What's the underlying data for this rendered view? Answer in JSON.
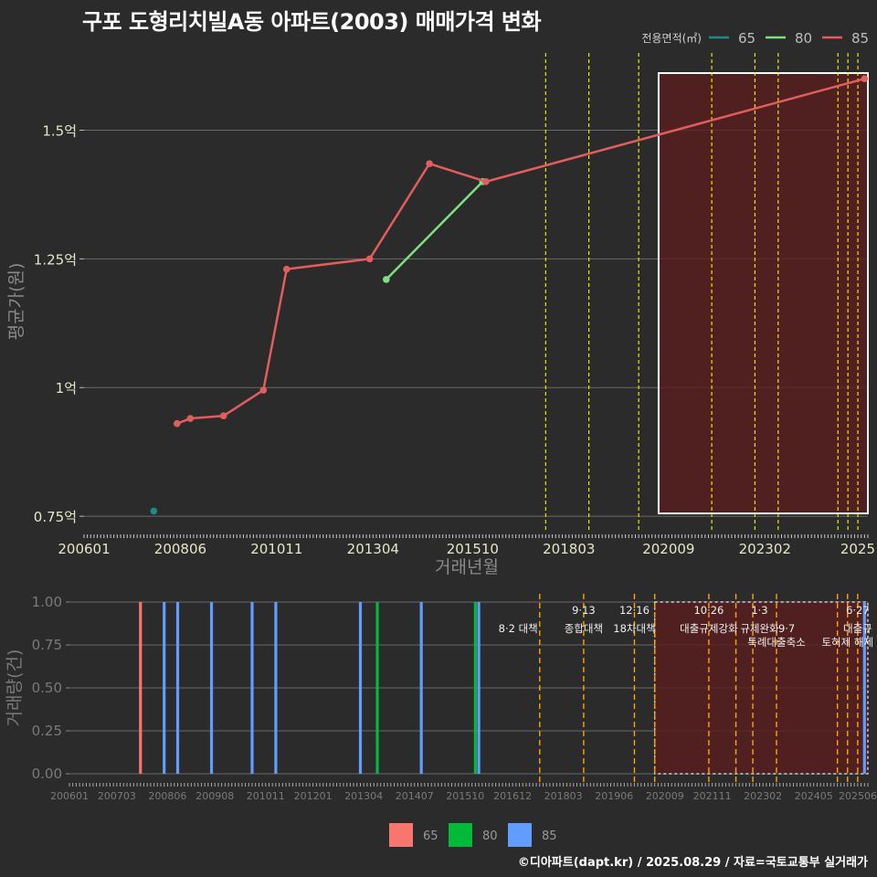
{
  "title": "구포 도형리치빌A동 아파트(2003) 매매가격 변화",
  "footer": "©디아파트(dapt.kr) / 2025.08.29 / 자료=국토교통부 실거래가",
  "colors": {
    "background": "#2b2b2c",
    "s65_line": "#1f8a8a",
    "s80_line": "#7ee07e",
    "s85_line": "#e35d5d",
    "s65_bar": "#f8766d",
    "s80_bar": "#00ba38",
    "s85_bar": "#619cff",
    "policy_top": "#e8e800",
    "policy_bottom": "#ffa500",
    "highlight": "#5a1e1e"
  },
  "chart_data": [
    {
      "type": "line",
      "xlabel": "거래년월",
      "ylabel": "평균가(원)",
      "legend": {
        "title": "전용면적(㎡)",
        "position": "top-right",
        "entries": [
          "65",
          "80",
          "85"
        ]
      },
      "x_ticks": [
        "200601",
        "200806",
        "201011",
        "201304",
        "201510",
        "201803",
        "202009",
        "202302",
        "2025"
      ],
      "y_ticks": [
        "0.75억",
        "1억",
        "1.25억",
        "1.5억"
      ],
      "ylim": [
        0.72,
        1.65
      ],
      "y_unit": "억",
      "grid": true,
      "series": [
        {
          "name": "65",
          "points": [
            [
              "2007-10",
              0.76
            ]
          ]
        },
        {
          "name": "80",
          "points": [
            [
              "2013-08",
              1.21
            ],
            [
              "2016-01",
              1.4
            ]
          ]
        },
        {
          "name": "85",
          "points": [
            [
              "2008-05",
              0.93
            ],
            [
              "2008-09",
              0.94
            ],
            [
              "2009-07",
              0.945
            ],
            [
              "2010-07",
              0.995
            ],
            [
              "2011-02",
              1.23
            ],
            [
              "2013-03",
              1.25
            ],
            [
              "2014-09",
              1.435
            ],
            [
              "2016-02",
              1.4
            ],
            [
              "2025-08",
              1.6
            ]
          ]
        }
      ],
      "policy_lines": [
        "2017-08",
        "2018-09",
        "2019-12",
        "2021-10",
        "2022-11",
        "2023-06",
        "2024-12",
        "2025-03",
        "2025-06"
      ],
      "highlight_range": [
        "2020-06",
        "2025-09"
      ]
    },
    {
      "type": "bar",
      "ylabel": "거래량(건)",
      "x_ticks": [
        "200601",
        "200703",
        "200806",
        "200908",
        "201011",
        "201201",
        "201304",
        "201407",
        "201510",
        "201612",
        "201803",
        "201906",
        "202009",
        "202111",
        "202302",
        "202405",
        "202506"
      ],
      "y_ticks": [
        "0.00",
        "0.25",
        "0.50",
        "0.75",
        "1.00"
      ],
      "ylim": [
        0,
        1
      ],
      "legend": {
        "position": "bottom",
        "entries": [
          "65",
          "80",
          "85"
        ]
      },
      "bars": [
        {
          "series": "65",
          "x": "2007-10",
          "value": 1
        },
        {
          "series": "85",
          "x": "2008-05",
          "value": 1
        },
        {
          "series": "85",
          "x": "2008-09",
          "value": 1
        },
        {
          "series": "85",
          "x": "2009-07",
          "value": 1
        },
        {
          "series": "85",
          "x": "2010-07",
          "value": 1
        },
        {
          "series": "85",
          "x": "2011-02",
          "value": 1
        },
        {
          "series": "85",
          "x": "2013-03",
          "value": 1
        },
        {
          "series": "80",
          "x": "2013-08",
          "value": 1
        },
        {
          "series": "85",
          "x": "2014-09",
          "value": 1
        },
        {
          "series": "80",
          "x": "2016-01",
          "value": 1
        },
        {
          "series": "85",
          "x": "2016-02",
          "value": 1
        },
        {
          "series": "85",
          "x": "2025-08",
          "value": 1
        }
      ],
      "policy_lines": [
        "2017-08",
        "2018-09",
        "2019-12",
        "2020-06",
        "2021-10",
        "2022-06",
        "2022-11",
        "2023-06",
        "2024-12",
        "2025-03",
        "2025-06"
      ],
      "highlight_range": [
        "2020-06",
        "2025-09"
      ],
      "annotations": [
        {
          "x": "2017-08",
          "row": 1,
          "anchor": "end",
          "text": "8·2 대책"
        },
        {
          "x": "2018-09",
          "row": 0,
          "anchor": "middle",
          "text": "9·13"
        },
        {
          "x": "2018-09",
          "row": 1,
          "anchor": "middle",
          "text": "종합대책"
        },
        {
          "x": "2019-12",
          "row": 0,
          "anchor": "middle",
          "text": "12·16"
        },
        {
          "x": "2019-12",
          "row": 1,
          "anchor": "middle",
          "text": "18차대책"
        },
        {
          "x": "2021-10",
          "row": 0,
          "anchor": "middle",
          "text": "10·26"
        },
        {
          "x": "2021-10",
          "row": 1,
          "anchor": "middle",
          "text": "대출규제강화"
        },
        {
          "x": "2023-01",
          "row": 0,
          "anchor": "middle",
          "text": "1·3"
        },
        {
          "x": "2023-01",
          "row": 1,
          "anchor": "middle",
          "text": "규제완화"
        },
        {
          "x": "2023-09",
          "row": 1,
          "anchor": "middle",
          "text": "9·7"
        },
        {
          "x": "2023-06",
          "row": 2,
          "anchor": "middle",
          "text": "특례대출축소"
        },
        {
          "x": "2025-03",
          "row": 2,
          "anchor": "middle",
          "text": "토허제 해제"
        },
        {
          "x": "2025-06",
          "row": 0,
          "anchor": "middle",
          "text": "6·27"
        },
        {
          "x": "2025-06",
          "row": 1,
          "anchor": "middle",
          "text": "대출규"
        }
      ]
    }
  ]
}
